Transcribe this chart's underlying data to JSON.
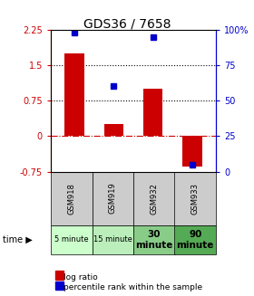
{
  "title": "GDS36 / 7658",
  "categories": [
    "GSM918",
    "GSM919",
    "GSM932",
    "GSM933"
  ],
  "time_labels": [
    "5 minute",
    "15 minute",
    "30\nminute",
    "90\nminute"
  ],
  "log_ratio": [
    1.75,
    0.25,
    1.0,
    -0.65
  ],
  "percentile_rank": [
    98,
    60,
    95,
    5
  ],
  "bar_color": "#cc0000",
  "dot_color": "#0000cc",
  "ylim_left": [
    -0.75,
    2.25
  ],
  "ylim_right": [
    0,
    100
  ],
  "yticks_left": [
    -0.75,
    0,
    0.75,
    1.5,
    2.25
  ],
  "yticks_right": [
    0,
    25,
    50,
    75,
    100
  ],
  "hlines": [
    0,
    0.75,
    1.5
  ],
  "hline_styles": [
    "dashdot",
    "dotted",
    "dotted"
  ],
  "hline_colors": [
    "#cc0000",
    "black",
    "black"
  ],
  "bg_color": "#ffffff",
  "time_colors": [
    "#ccffcc",
    "#bbeebb",
    "#88cc88",
    "#55aa55"
  ],
  "gsm_bg": "#cccccc",
  "legend_items": [
    "log ratio",
    "percentile rank within the sample"
  ],
  "bar_width": 0.5
}
